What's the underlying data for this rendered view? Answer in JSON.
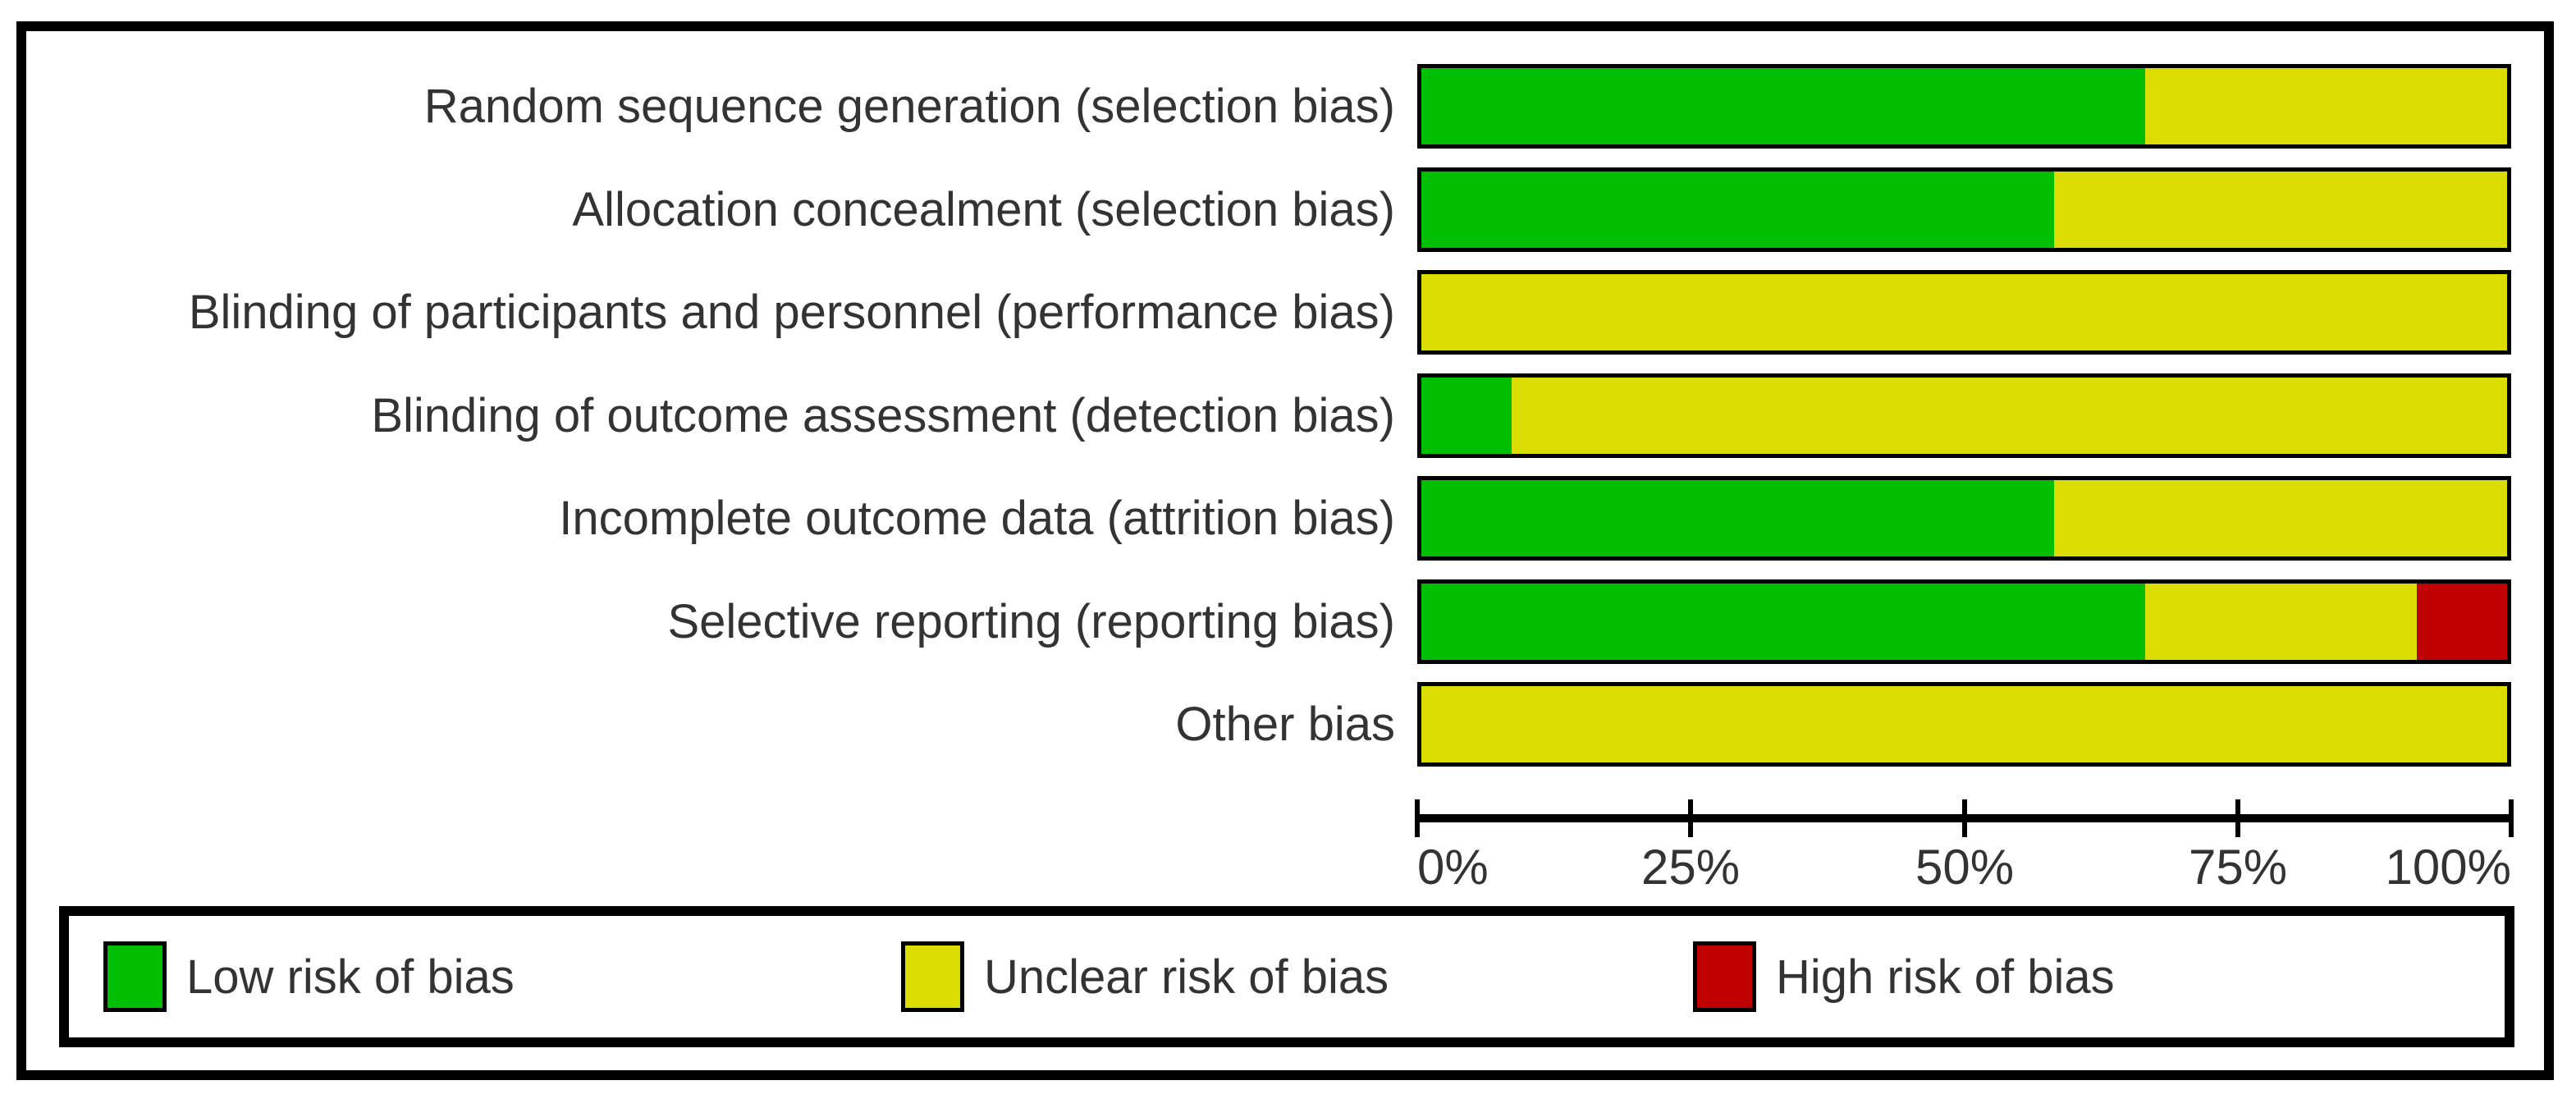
{
  "chart_data": {
    "type": "bar",
    "orientation": "horizontal-stacked",
    "title": "",
    "categories": [
      "Random sequence generation (selection bias)",
      "Allocation concealment (selection bias)",
      "Blinding of participants and personnel (performance bias)",
      "Blinding of outcome assessment (detection bias)",
      "Incomplete outcome data (attrition bias)",
      "Selective reporting (reporting bias)",
      "Other bias"
    ],
    "series": [
      {
        "name": "Low risk of bias",
        "color": "#00BF00",
        "values": [
          66.7,
          58.3,
          0,
          8.3,
          58.3,
          66.7,
          0
        ]
      },
      {
        "name": "Unclear risk of bias",
        "color": "#DBDD00",
        "values": [
          33.3,
          41.7,
          100,
          91.7,
          41.7,
          25.0,
          100
        ]
      },
      {
        "name": "High risk of bias",
        "color": "#C00000",
        "values": [
          0,
          0,
          0,
          0,
          0,
          8.3,
          0
        ]
      }
    ],
    "xlim": [
      0,
      100
    ],
    "x_tick_labels": [
      "0%",
      "25%",
      "50%",
      "75%",
      "100%"
    ],
    "grid": false,
    "legend_position": "bottom",
    "frame_color": "#000000",
    "text_color": "#333333"
  }
}
